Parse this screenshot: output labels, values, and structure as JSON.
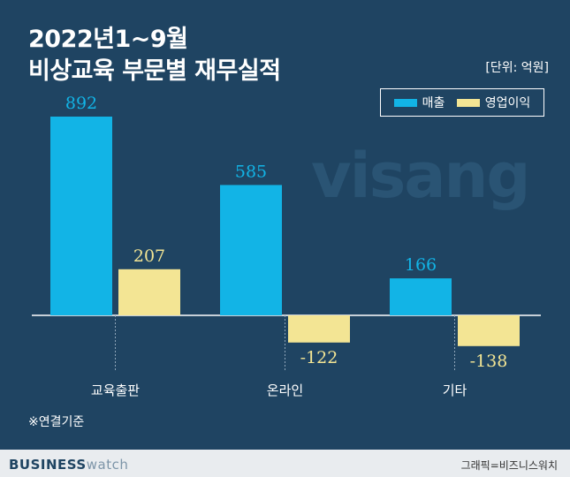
{
  "header": {
    "title_line1": "2022년1~9월",
    "title_line2": "비상교육 부문별 재무실적",
    "unit": "[단위: 억원]"
  },
  "watermark": "visang",
  "note": "※연결기준",
  "footer": {
    "brand_part1": "BUSINESS",
    "brand_part2": "watch",
    "credit": "그래픽=비즈니스워치"
  },
  "colors": {
    "background": "#1f4462",
    "sales": "#12b4e6",
    "profit": "#f3e594",
    "axis": "#ffffff"
  },
  "chart_data": {
    "type": "bar",
    "title": "비상교육 부문별 재무실적",
    "unit": "억원",
    "categories": [
      "교육출판",
      "온라인",
      "기타"
    ],
    "series": [
      {
        "name": "매출",
        "values": [
          892,
          585,
          166
        ]
      },
      {
        "name": "영업이익",
        "values": [
          207,
          -122,
          -138
        ]
      }
    ],
    "ylim": [
      -160,
      920
    ],
    "grid": false,
    "legend": "top-right"
  }
}
